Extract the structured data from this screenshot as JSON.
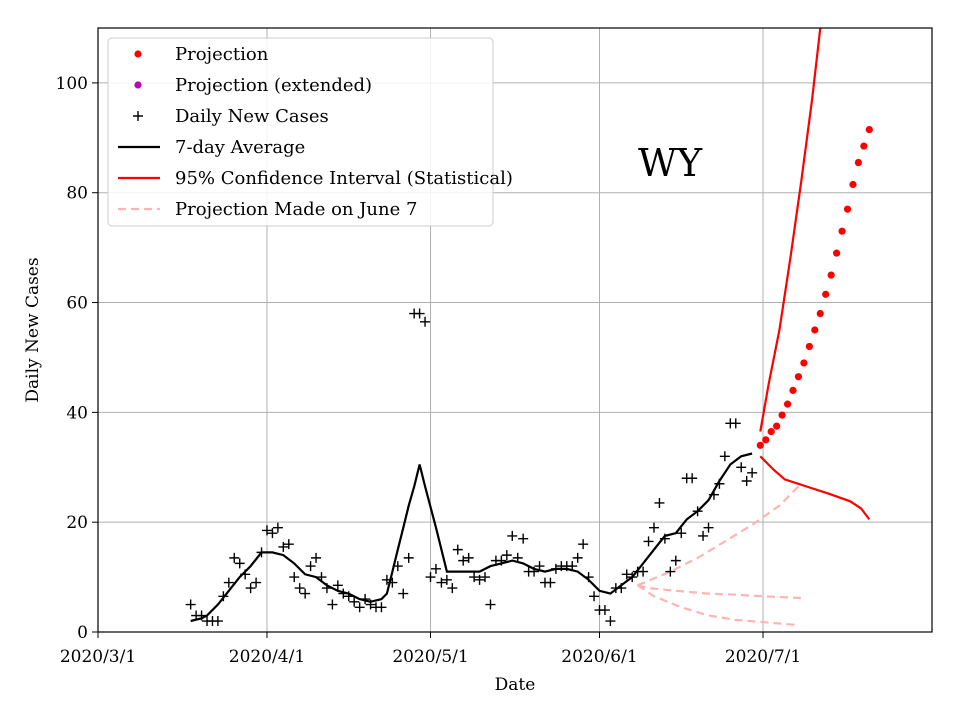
{
  "chart_data": {
    "type": "line",
    "xlabel": "Date",
    "ylabel": "Daily New Cases",
    "annotation": "WY",
    "xlim": [
      "2020-03-01",
      "2020-08-01"
    ],
    "ylim": [
      0,
      110
    ],
    "x_ticks": [
      {
        "day": 0,
        "label": "2020/3/1"
      },
      {
        "day": 31,
        "label": "2020/4/1"
      },
      {
        "day": 61,
        "label": "2020/5/1"
      },
      {
        "day": 92,
        "label": "2020/6/1"
      },
      {
        "day": 122,
        "label": "2020/7/1"
      }
    ],
    "y_ticks": [
      0,
      20,
      40,
      60,
      80,
      100
    ],
    "grid": true,
    "legend_position": "upper-left",
    "legend": [
      {
        "label": "Projection",
        "style": "dot",
        "color": "#ff0000"
      },
      {
        "label": "Projection (extended)",
        "style": "dot",
        "color": "#bf00bf"
      },
      {
        "label": "Daily New Cases",
        "style": "plus",
        "color": "#000000"
      },
      {
        "label": "7-day Average",
        "style": "line",
        "color": "#000000"
      },
      {
        "label": "95% Confidence Interval (Statistical)",
        "style": "line",
        "color": "#ff0000"
      },
      {
        "label": "Projection Made on June 7",
        "style": "dashed",
        "color": "#ffb3b3"
      }
    ],
    "series": [
      {
        "name": "Daily New Cases",
        "x_unit": "days since 2020-03-01",
        "points": [
          [
            17,
            5
          ],
          [
            18,
            3
          ],
          [
            19,
            3
          ],
          [
            20,
            2
          ],
          [
            21,
            2
          ],
          [
            22,
            2
          ],
          [
            23,
            6.5
          ],
          [
            24,
            9
          ],
          [
            25,
            13.5
          ],
          [
            26,
            12.5
          ],
          [
            27,
            10.5
          ],
          [
            28,
            8
          ],
          [
            29,
            9
          ],
          [
            30,
            14.5
          ],
          [
            31,
            18.5
          ],
          [
            32,
            18
          ],
          [
            33,
            19
          ],
          [
            34,
            15.5
          ],
          [
            35,
            16
          ],
          [
            36,
            10
          ],
          [
            37,
            8
          ],
          [
            38,
            7
          ],
          [
            39,
            12
          ],
          [
            40,
            13.5
          ],
          [
            41,
            10
          ],
          [
            42,
            8
          ],
          [
            43,
            5
          ],
          [
            44,
            8.5
          ],
          [
            45,
            7
          ],
          [
            46,
            6.5
          ],
          [
            47,
            5.5
          ],
          [
            48,
            4.5
          ],
          [
            49,
            6
          ],
          [
            50,
            5
          ],
          [
            51,
            4.5
          ],
          [
            52,
            4.5
          ],
          [
            53,
            9.5
          ],
          [
            54,
            9
          ],
          [
            55,
            12
          ],
          [
            56,
            7
          ],
          [
            57,
            13.5
          ],
          [
            58,
            58
          ],
          [
            59,
            58
          ],
          [
            60,
            56.5
          ],
          [
            61,
            10
          ],
          [
            62,
            11.5
          ],
          [
            63,
            9
          ],
          [
            64,
            9.5
          ],
          [
            65,
            8
          ],
          [
            66,
            15
          ],
          [
            67,
            13
          ],
          [
            68,
            13.5
          ],
          [
            69,
            10
          ],
          [
            70,
            9.5
          ],
          [
            71,
            10
          ],
          [
            72,
            5
          ],
          [
            73,
            13
          ],
          [
            74,
            13
          ],
          [
            75,
            14
          ],
          [
            76,
            17.5
          ],
          [
            77,
            13.5
          ],
          [
            78,
            17
          ],
          [
            79,
            11
          ],
          [
            80,
            11
          ],
          [
            81,
            12
          ],
          [
            82,
            9
          ],
          [
            83,
            9
          ],
          [
            84,
            11.5
          ],
          [
            85,
            12
          ],
          [
            86,
            12
          ],
          [
            87,
            12
          ],
          [
            88,
            13.5
          ],
          [
            89,
            16
          ],
          [
            90,
            10
          ],
          [
            91,
            6.5
          ],
          [
            92,
            4
          ],
          [
            93,
            4
          ],
          [
            94,
            2
          ],
          [
            95,
            8
          ],
          [
            96,
            8
          ],
          [
            97,
            10.5
          ],
          [
            98,
            10
          ],
          [
            99,
            11
          ],
          [
            100,
            11
          ],
          [
            101,
            16.5
          ],
          [
            102,
            19
          ],
          [
            103,
            23.5
          ],
          [
            104,
            17
          ],
          [
            105,
            11
          ],
          [
            106,
            13
          ],
          [
            107,
            18
          ],
          [
            108,
            28
          ],
          [
            109,
            28
          ],
          [
            110,
            22
          ],
          [
            111,
            17.5
          ],
          [
            112,
            19
          ],
          [
            113,
            25
          ],
          [
            114,
            27
          ],
          [
            115,
            32
          ],
          [
            116,
            38
          ],
          [
            117,
            38
          ],
          [
            118,
            30
          ],
          [
            119,
            27.5
          ],
          [
            120,
            29
          ]
        ]
      },
      {
        "name": "7-day Average",
        "x_unit": "days since 2020-03-01",
        "points": [
          [
            17,
            2
          ],
          [
            19,
            2.5
          ],
          [
            20,
            3
          ],
          [
            22,
            5
          ],
          [
            24,
            7.5
          ],
          [
            26,
            10
          ],
          [
            28,
            12
          ],
          [
            30,
            14.5
          ],
          [
            32,
            14.5
          ],
          [
            34,
            14
          ],
          [
            36,
            12.5
          ],
          [
            38,
            10.5
          ],
          [
            40,
            10
          ],
          [
            42,
            8.5
          ],
          [
            44,
            7.5
          ],
          [
            46,
            7
          ],
          [
            48,
            6
          ],
          [
            50,
            5.5
          ],
          [
            52,
            6
          ],
          [
            53,
            7
          ],
          [
            54,
            11
          ],
          [
            55,
            15
          ],
          [
            56,
            19
          ],
          [
            57,
            23
          ],
          [
            58,
            26.5
          ],
          [
            59,
            30.5
          ],
          [
            60,
            26.5
          ],
          [
            62,
            19
          ],
          [
            64,
            11
          ],
          [
            66,
            11
          ],
          [
            68,
            11
          ],
          [
            70,
            11
          ],
          [
            72,
            12
          ],
          [
            74,
            12.5
          ],
          [
            76,
            13
          ],
          [
            78,
            12.5
          ],
          [
            80,
            11.5
          ],
          [
            82,
            11
          ],
          [
            84,
            11.5
          ],
          [
            86,
            11.5
          ],
          [
            88,
            11
          ],
          [
            90,
            9.5
          ],
          [
            92,
            7.5
          ],
          [
            94,
            7
          ],
          [
            96,
            8.5
          ],
          [
            98,
            10
          ],
          [
            100,
            12.5
          ],
          [
            102,
            15
          ],
          [
            104,
            17.5
          ],
          [
            106,
            18
          ],
          [
            108,
            20.5
          ],
          [
            110,
            22
          ],
          [
            112,
            24
          ],
          [
            114,
            27.5
          ],
          [
            116,
            30.5
          ],
          [
            118,
            32
          ],
          [
            120,
            32.5
          ]
        ]
      },
      {
        "name": "Projection",
        "x_unit": "days since 2020-03-01",
        "points": [
          [
            121.5,
            34
          ],
          [
            122.5,
            35
          ],
          [
            123.5,
            36.5
          ],
          [
            124.5,
            37.5
          ],
          [
            125.5,
            39.5
          ],
          [
            126.5,
            41.5
          ],
          [
            127.5,
            44
          ],
          [
            128.5,
            46.5
          ],
          [
            129.5,
            49
          ],
          [
            130.5,
            52
          ],
          [
            131.5,
            55
          ],
          [
            132.5,
            58
          ],
          [
            133.5,
            61.5
          ],
          [
            134.5,
            65
          ],
          [
            135.5,
            69
          ],
          [
            136.5,
            73
          ],
          [
            137.5,
            77
          ],
          [
            138.5,
            81.5
          ],
          [
            139.5,
            85.5
          ],
          [
            140.5,
            88.5
          ],
          [
            141.5,
            91.5
          ]
        ]
      },
      {
        "name": "95% Confidence Interval (Statistical) upper",
        "x_unit": "days since 2020-03-01",
        "points": [
          [
            121.5,
            36.5
          ],
          [
            123,
            45
          ],
          [
            125,
            55
          ],
          [
            127,
            68
          ],
          [
            129,
            82
          ],
          [
            131,
            97
          ],
          [
            132.5,
            110
          ]
        ]
      },
      {
        "name": "95% Confidence Interval (Statistical) lower",
        "x_unit": "days since 2020-03-01",
        "points": [
          [
            121.5,
            32
          ],
          [
            124,
            29.5
          ],
          [
            126,
            27.8
          ],
          [
            130,
            26.5
          ],
          [
            134,
            25.2
          ],
          [
            138,
            23.8
          ],
          [
            140,
            22.5
          ],
          [
            141.5,
            20.5
          ]
        ]
      },
      {
        "name": "Projection Made on June 7 (upper)",
        "x_unit": "days since 2020-03-01",
        "points": [
          [
            99,
            8.5
          ],
          [
            105,
            11
          ],
          [
            110,
            13.5
          ],
          [
            115,
            16.5
          ],
          [
            120,
            19.5
          ],
          [
            125,
            23
          ],
          [
            129,
            27
          ]
        ]
      },
      {
        "name": "Projection Made on June 7 (middle)",
        "x_unit": "days since 2020-03-01",
        "points": [
          [
            99,
            8.5
          ],
          [
            101,
            8
          ],
          [
            106,
            7.5
          ],
          [
            112,
            7
          ],
          [
            117,
            6.8
          ],
          [
            122,
            6.5
          ],
          [
            129,
            6.2
          ]
        ]
      },
      {
        "name": "Projection Made on June 7 (lower)",
        "x_unit": "days since 2020-03-01",
        "points": [
          [
            99,
            8.5
          ],
          [
            102,
            6.5
          ],
          [
            107,
            4.5
          ],
          [
            112,
            3
          ],
          [
            117,
            2.2
          ],
          [
            122,
            1.8
          ],
          [
            128,
            1.3
          ]
        ]
      }
    ]
  }
}
